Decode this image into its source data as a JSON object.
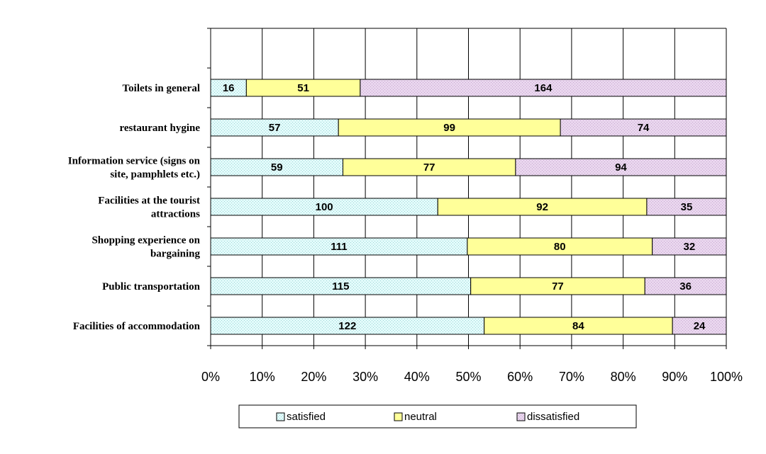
{
  "chart_data": {
    "type": "bar",
    "orientation": "horizontal",
    "stacked": "percent",
    "categories": [
      [
        "Toilets in general"
      ],
      [
        "restaurant hygine"
      ],
      [
        "Information service (signs on",
        "site, pamphlets etc.)"
      ],
      [
        "Facilities at the tourist",
        "attractions"
      ],
      [
        "Shopping experience on",
        "bargaining"
      ],
      [
        "Public transportation"
      ],
      [
        "Facilities of accommodation"
      ]
    ],
    "series": [
      {
        "name": "satisfied",
        "color": "#e2fbfb",
        "values": [
          16,
          57,
          59,
          100,
          111,
          115,
          122
        ]
      },
      {
        "name": "neutral",
        "color": "#ffff99",
        "values": [
          51,
          99,
          77,
          92,
          80,
          77,
          84
        ]
      },
      {
        "name": "dissatisfied",
        "color": "#e9d6ee",
        "values": [
          164,
          74,
          94,
          35,
          32,
          36,
          24
        ]
      }
    ],
    "xticks": [
      "0%",
      "10%",
      "20%",
      "30%",
      "40%",
      "50%",
      "60%",
      "70%",
      "80%",
      "90%",
      "100%"
    ],
    "xlim": [
      0,
      100
    ],
    "grid": true,
    "legend_position": "bottom"
  }
}
